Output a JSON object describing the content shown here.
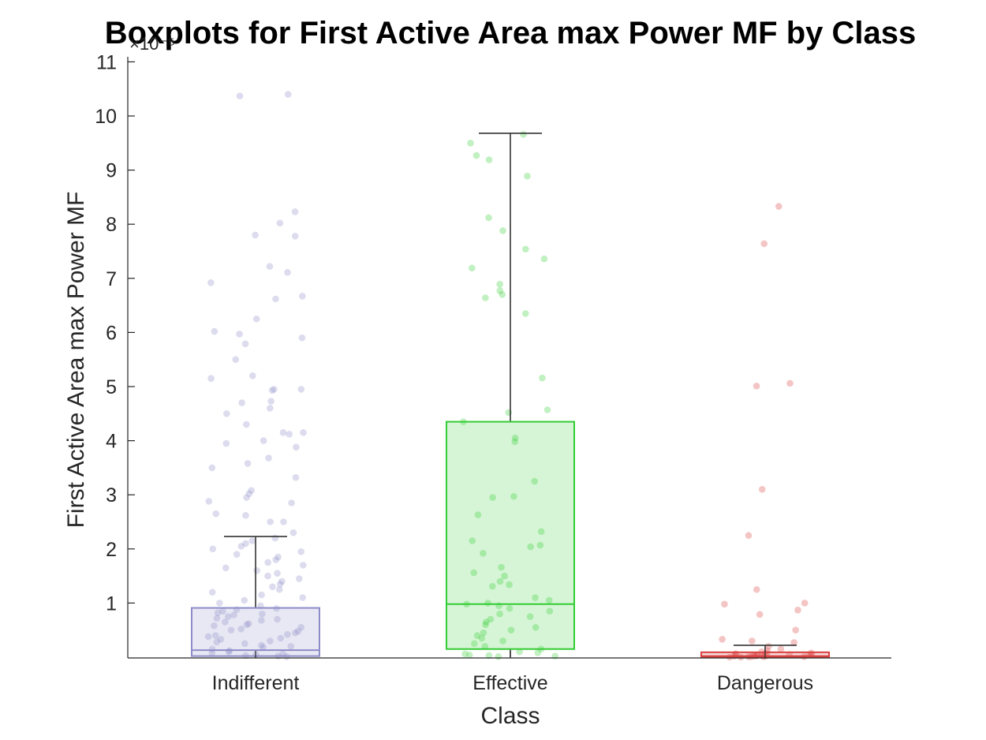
{
  "chart_data": {
    "type": "boxplot",
    "title": "Boxplots for First Active Area max Power MF by Class",
    "xlabel": "Class",
    "ylabel": "First Active Area max Power MF",
    "y_exponent_label": "×10⁻⁵",
    "ylim": [
      0,
      11
    ],
    "yticks": [
      1,
      2,
      3,
      4,
      5,
      6,
      7,
      8,
      9,
      10,
      11
    ],
    "categories": [
      "Indifferent",
      "Effective",
      "Dangerous"
    ],
    "series": [
      {
        "name": "Indifferent",
        "color": "#8c8cc8",
        "whisker_low": 0.0,
        "q1": 0.02,
        "median": 0.13,
        "q3": 0.91,
        "whisker_high": 2.23,
        "outliers": [
          10.37,
          10.4,
          8.23,
          8.02,
          7.8,
          7.78,
          7.22,
          7.11,
          6.92,
          6.67,
          6.62,
          6.25,
          6.02,
          5.97,
          5.9,
          5.79,
          5.5,
          5.2,
          5.15,
          4.95,
          4.95,
          4.93,
          4.73,
          4.7,
          4.6,
          4.5,
          4.3,
          4.15,
          4.15,
          4.12,
          4.0,
          3.95,
          3.88,
          3.68,
          3.58,
          3.5,
          3.32,
          3.08,
          3.02,
          2.95,
          2.88,
          2.85,
          2.65,
          2.62,
          2.5,
          2.5,
          2.3
        ]
      },
      {
        "name": "Effective",
        "color": "#33cc33",
        "whisker_low": 0.0,
        "q1": 0.15,
        "median": 0.98,
        "q3": 4.35,
        "whisker_high": 9.68,
        "outliers": []
      },
      {
        "name": "Dangerous",
        "color": "#d94040",
        "whisker_low": 0.0,
        "q1": 0.0,
        "median": 0.02,
        "q3": 0.09,
        "whisker_high": 0.22,
        "outliers": [
          8.33,
          7.64,
          5.06,
          5.01,
          3.1,
          2.25,
          1.25,
          1.0,
          0.98,
          0.87,
          0.79,
          0.5,
          0.33,
          0.3,
          0.27
        ]
      }
    ],
    "jitter_points": {
      "Indifferent": [
        0.02,
        0.05,
        0.1,
        0.15,
        0.2,
        0.25,
        0.3,
        0.35,
        0.4,
        0.45,
        0.5,
        0.55,
        0.6,
        0.65,
        0.7,
        0.75,
        0.8,
        0.85,
        0.9,
        0.95,
        1.0,
        1.05,
        1.1,
        1.15,
        1.2,
        1.25,
        1.3,
        1.35,
        1.4,
        1.45,
        1.5,
        1.55,
        1.6,
        1.65,
        1.7,
        1.75,
        1.8,
        1.85,
        1.9,
        1.95,
        2.0,
        2.05,
        2.1,
        2.15,
        2.2,
        0.01,
        0.03,
        0.06,
        0.08,
        0.12,
        0.18,
        0.22,
        0.28,
        0.33,
        0.38,
        0.42,
        0.48,
        0.52,
        0.58,
        0.62,
        0.68,
        0.72,
        0.78,
        0.82,
        0.88
      ],
      "Effective": [
        9.66,
        9.5,
        9.27,
        9.19,
        8.89,
        8.12,
        7.88,
        7.54,
        7.36,
        7.19,
        6.89,
        6.77,
        6.7,
        6.64,
        6.35,
        5.16,
        4.57,
        4.52,
        4.35,
        4.05,
        3.98,
        3.25,
        2.97,
        2.95,
        2.63,
        2.32,
        2.15,
        2.07,
        2.04,
        1.92,
        1.66,
        1.56,
        1.5,
        1.4,
        1.34,
        1.31,
        1.1,
        1.05,
        1.0,
        0.98,
        0.95,
        0.9,
        0.85,
        0.8,
        0.75,
        0.7,
        0.65,
        0.6,
        0.55,
        0.5,
        0.45,
        0.4,
        0.35,
        0.3,
        0.25,
        0.2,
        0.15,
        0.1,
        0.08,
        0.06,
        0.04,
        0.03,
        0.02,
        0.01
      ],
      "Dangerous": [
        0.2,
        0.15,
        0.12,
        0.1,
        0.08,
        0.06,
        0.05,
        0.04,
        0.03,
        0.02,
        0.01,
        0.01,
        0.02,
        0.03,
        0.04,
        0.05,
        0.06,
        0.07,
        0.02,
        0.03,
        0.01,
        0.0,
        0.0,
        0.01
      ]
    }
  }
}
